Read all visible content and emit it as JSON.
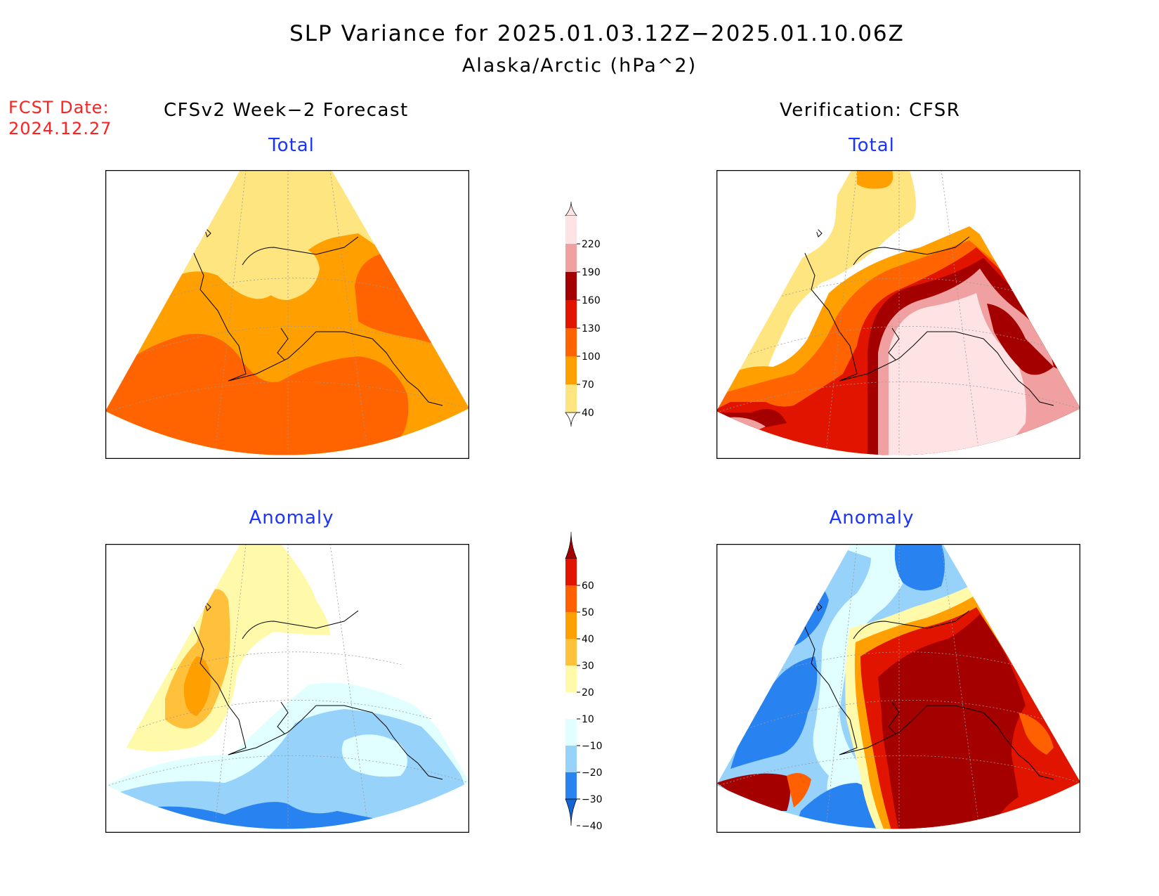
{
  "title": {
    "line1": "SLP Variance for 2025.01.03.12Z−2025.01.10.06Z",
    "line2": "Alaska/Arctic (hPa^2)"
  },
  "forecast_date": {
    "label": "FCST Date:",
    "value": "2024.12.27"
  },
  "columns": {
    "left": "CFSv2 Week−2 Forecast",
    "right": "Verification: CFSR"
  },
  "panels": {
    "forecast_total_title": "Total",
    "verification_total_title": "Total",
    "forecast_anomaly_title": "Anomaly",
    "verification_anomaly_title": "Anomaly"
  },
  "colors": {
    "total": [
      "#fee580",
      "#ffa000",
      "#ff6400",
      "#e11400",
      "#a50000",
      "#f0a0a0",
      "#fde3e3"
    ],
    "anomaly": [
      "#1464d2",
      "#2882f0",
      "#96d2fa",
      "#e1ffff",
      "#ffffff",
      "#fffaaa",
      "#ffc03c",
      "#ffa000",
      "#ff6000",
      "#e11400",
      "#a50000"
    ]
  },
  "chart_data": [
    {
      "type": "colorbar",
      "name": "total",
      "levels": [
        40,
        70,
        100,
        130,
        160,
        190,
        220
      ],
      "tick_labels": [
        "40",
        "70",
        "100",
        "130",
        "160",
        "190",
        "220"
      ]
    },
    {
      "type": "colorbar",
      "name": "anomaly",
      "levels": [
        -40,
        -30,
        -20,
        -10,
        10,
        20,
        30,
        40,
        50,
        60
      ],
      "tick_labels": [
        "−40",
        "−30",
        "−20",
        "−10",
        "10",
        "20",
        "30",
        "40",
        "50",
        "60"
      ]
    }
  ]
}
